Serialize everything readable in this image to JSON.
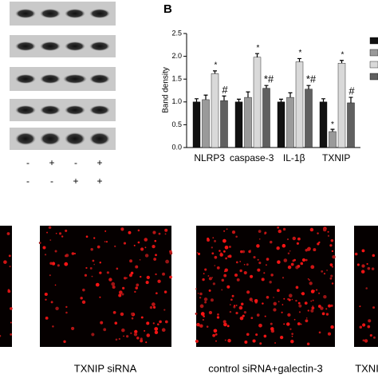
{
  "chart_data": {
    "type": "bar",
    "panel_label": "B",
    "y_label": "Band density",
    "categories": [
      "NLRP3",
      "caspase-3",
      "IL-1β",
      "TXNIP"
    ],
    "series": [
      {
        "color": "#111111",
        "values": [
          1.0,
          1.0,
          1.0,
          1.0
        ],
        "errors": [
          0.07,
          0.06,
          0.06,
          0.07
        ]
      },
      {
        "color": "#9a9a9a",
        "values": [
          1.05,
          1.1,
          1.1,
          0.35
        ],
        "errors": [
          0.1,
          0.12,
          0.1,
          0.05
        ]
      },
      {
        "color": "#d9d9d9",
        "values": [
          1.62,
          1.98,
          1.88,
          1.85
        ],
        "errors": [
          0.06,
          0.08,
          0.07,
          0.06
        ],
        "annotations": [
          "*",
          "*",
          "*",
          "*"
        ]
      },
      {
        "color": "#606060",
        "values": [
          1.03,
          1.3,
          1.28,
          0.98
        ],
        "errors": [
          0.1,
          0.06,
          0.08,
          0.12
        ],
        "annotations": [
          "#",
          "*#",
          "*#",
          "#"
        ]
      }
    ],
    "extra_annotations": [
      {
        "series": 1,
        "category": 3,
        "text": "*"
      }
    ],
    "ylim": [
      0,
      2.5
    ],
    "yticks": [
      {
        "value": 0,
        "label": "0.0"
      },
      {
        "value": 0.5,
        "label": "0.5"
      },
      {
        "value": 1,
        "label": "1.0"
      },
      {
        "value": 1.5,
        "label": "1.5"
      },
      {
        "value": 2,
        "label": "2.0"
      },
      {
        "value": 2.5,
        "label": "2.5"
      }
    ],
    "legend": "right"
  },
  "blot": {
    "treatment_rows": [
      [
        "-",
        "+",
        "-",
        "+"
      ],
      [
        "-",
        "-",
        "+",
        "+"
      ]
    ]
  },
  "images": {
    "captions": [
      "TXNIP siRNA",
      "control siRNA+galectin-3",
      "TXNI"
    ]
  }
}
